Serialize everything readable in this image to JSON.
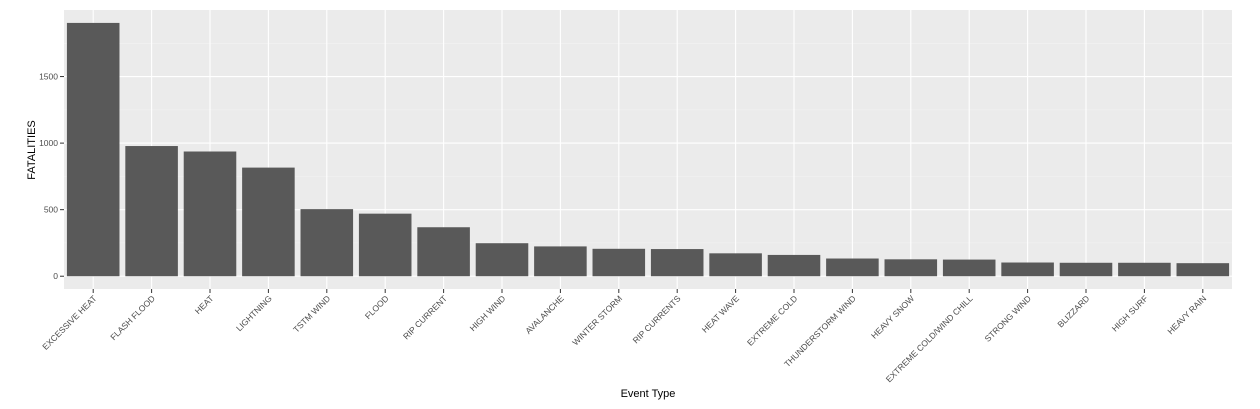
{
  "chart_data": {
    "type": "bar",
    "title": "",
    "xlabel": "Event Type",
    "ylabel": "FATALITIES",
    "categories": [
      "EXCESSIVE HEAT",
      "FLASH FLOOD",
      "HEAT",
      "LIGHTNING",
      "TSTM WIND",
      "FLOOD",
      "RIP CURRENT",
      "HIGH WIND",
      "AVALANCHE",
      "WINTER STORM",
      "RIP CURRENTS",
      "HEAT WAVE",
      "EXTREME COLD",
      "THUNDERSTORM WIND",
      "HEAVY SNOW",
      "EXTREME COLD/WIND CHILL",
      "STRONG WIND",
      "BLIZZARD",
      "HIGH SURF",
      "HEAVY RAIN"
    ],
    "values": [
      1903,
      978,
      937,
      816,
      504,
      470,
      368,
      248,
      224,
      206,
      204,
      172,
      160,
      133,
      127,
      125,
      103,
      101,
      101,
      98
    ],
    "yticks": [
      0,
      500,
      1000,
      1500
    ],
    "ylim": [
      -96,
      2000
    ],
    "grid": true,
    "colors": {
      "bar": "#595959",
      "panel": "#ebebeb",
      "grid_major": "#ffffff",
      "grid_minor": "#f2f2f2"
    }
  }
}
